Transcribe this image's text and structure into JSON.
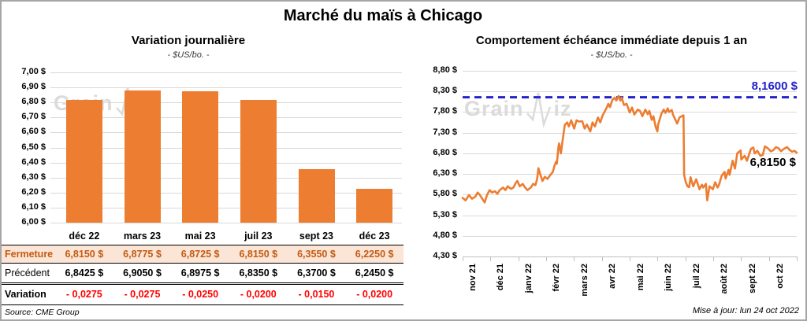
{
  "header": {
    "title": "Marché du maïs à Chicago"
  },
  "footer": {
    "source": "Source: CME Group",
    "updated": "Mise à jour: lun 24 oct 2022"
  },
  "watermark": {
    "part1": "Grain",
    "part2": "iz"
  },
  "colors": {
    "accent_orange": "#ED7D31",
    "ref_blue": "#2222CC",
    "negative_red": "#FF0000",
    "fermeture_text": "#C55A11",
    "fermeture_bg": "#FBE5D6",
    "gridline": "#D9D9D9",
    "watermark_gray": "#C9C9C9"
  },
  "chart_data": [
    {
      "type": "bar",
      "title": "Variation journalière",
      "subtitle": "- $US/bo. -",
      "categories": [
        "déc 22",
        "mars 23",
        "mai 23",
        "juil 23",
        "sept 23",
        "déc 23"
      ],
      "values": [
        6.815,
        6.8775,
        6.8725,
        6.815,
        6.355,
        6.225
      ],
      "ylim": [
        6.0,
        7.0
      ],
      "ytick_step": 0.1,
      "ytick_labels": [
        "7,00 $",
        "6,90 $",
        "6,80 $",
        "6,70 $",
        "6,60 $",
        "6,50 $",
        "6,40 $",
        "6,30 $",
        "6,20 $",
        "6,10 $",
        "6,00 $"
      ],
      "grid": true,
      "legend": "none",
      "bar_color": "#ED7D31"
    },
    {
      "type": "line",
      "title": "Comportement échéance immédiate depuis 1 an",
      "subtitle": "- $US/bo. -",
      "x_labels": [
        "nov 21",
        "déc 21",
        "janv 22",
        "févr 22",
        "mars 22",
        "avr 22",
        "mai 22",
        "juin 22",
        "juil 22",
        "août 22",
        "sept 22",
        "oct 22"
      ],
      "ylim": [
        4.3,
        8.8
      ],
      "ytick_step": 0.5,
      "ytick_labels": [
        "8,80 $",
        "8,30 $",
        "7,80 $",
        "7,30 $",
        "6,80 $",
        "6,30 $",
        "5,80 $",
        "5,30 $",
        "4,80 $",
        "4,30 $"
      ],
      "grid": true,
      "legend": "none",
      "line_color": "#ED7D31",
      "ref_line": {
        "value": 8.16,
        "label": "8,1600 $",
        "color": "#2222CC",
        "style": "dashed"
      },
      "last_value": 6.815,
      "last_value_label": "6,8150 $",
      "points": [
        [
          0.0,
          5.72
        ],
        [
          0.009,
          5.66
        ],
        [
          0.019,
          5.79
        ],
        [
          0.028,
          5.7
        ],
        [
          0.038,
          5.75
        ],
        [
          0.045,
          5.85
        ],
        [
          0.052,
          5.79
        ],
        [
          0.062,
          5.66
        ],
        [
          0.066,
          5.61
        ],
        [
          0.073,
          5.79
        ],
        [
          0.081,
          5.91
        ],
        [
          0.088,
          5.85
        ],
        [
          0.097,
          5.88
        ],
        [
          0.104,
          5.82
        ],
        [
          0.111,
          5.91
        ],
        [
          0.121,
          5.97
        ],
        [
          0.128,
          5.91
        ],
        [
          0.135,
          6.0
        ],
        [
          0.145,
          5.94
        ],
        [
          0.152,
          5.97
        ],
        [
          0.159,
          6.08
        ],
        [
          0.164,
          6.13
        ],
        [
          0.171,
          6.0
        ],
        [
          0.18,
          6.06
        ],
        [
          0.187,
          5.97
        ],
        [
          0.194,
          5.91
        ],
        [
          0.204,
          5.97
        ],
        [
          0.211,
          6.06
        ],
        [
          0.218,
          6.03
        ],
        [
          0.223,
          6.18
        ],
        [
          0.227,
          6.44
        ],
        [
          0.232,
          6.3
        ],
        [
          0.239,
          6.13
        ],
        [
          0.246,
          6.23
        ],
        [
          0.254,
          6.18
        ],
        [
          0.261,
          6.26
        ],
        [
          0.27,
          6.35
        ],
        [
          0.275,
          6.5
        ],
        [
          0.28,
          6.6
        ],
        [
          0.282,
          6.55
        ],
        [
          0.287,
          6.97
        ],
        [
          0.289,
          7.04
        ],
        [
          0.294,
          6.8
        ],
        [
          0.299,
          7.1
        ],
        [
          0.306,
          7.49
        ],
        [
          0.313,
          7.55
        ],
        [
          0.318,
          7.45
        ],
        [
          0.325,
          7.6
        ],
        [
          0.334,
          7.4
        ],
        [
          0.341,
          7.6
        ],
        [
          0.348,
          7.57
        ],
        [
          0.358,
          7.58
        ],
        [
          0.365,
          7.4
        ],
        [
          0.372,
          7.5
        ],
        [
          0.382,
          7.33
        ],
        [
          0.389,
          7.55
        ],
        [
          0.396,
          7.45
        ],
        [
          0.405,
          7.67
        ],
        [
          0.412,
          7.55
        ],
        [
          0.419,
          7.72
        ],
        [
          0.429,
          7.87
        ],
        [
          0.436,
          8.0
        ],
        [
          0.441,
          7.92
        ],
        [
          0.448,
          8.09
        ],
        [
          0.455,
          8.15
        ],
        [
          0.46,
          8.08
        ],
        [
          0.467,
          8.19
        ],
        [
          0.472,
          8.08
        ],
        [
          0.476,
          8.15
        ],
        [
          0.483,
          7.97
        ],
        [
          0.491,
          8.0
        ],
        [
          0.5,
          7.79
        ],
        [
          0.507,
          7.91
        ],
        [
          0.514,
          7.74
        ],
        [
          0.524,
          7.86
        ],
        [
          0.531,
          7.83
        ],
        [
          0.538,
          7.7
        ],
        [
          0.547,
          7.86
        ],
        [
          0.554,
          7.75
        ],
        [
          0.559,
          7.83
        ],
        [
          0.566,
          7.61
        ],
        [
          0.571,
          7.7
        ],
        [
          0.578,
          7.43
        ],
        [
          0.583,
          7.33
        ],
        [
          0.585,
          7.49
        ],
        [
          0.595,
          7.76
        ],
        [
          0.602,
          7.86
        ],
        [
          0.607,
          7.78
        ],
        [
          0.614,
          7.89
        ],
        [
          0.618,
          7.8
        ],
        [
          0.626,
          7.85
        ],
        [
          0.63,
          7.73
        ],
        [
          0.637,
          7.61
        ],
        [
          0.642,
          7.52
        ],
        [
          0.649,
          7.67
        ],
        [
          0.656,
          7.7
        ],
        [
          0.661,
          7.72
        ],
        [
          0.663,
          6.28
        ],
        [
          0.668,
          6.1
        ],
        [
          0.673,
          6.0
        ],
        [
          0.678,
          5.98
        ],
        [
          0.682,
          6.22
        ],
        [
          0.69,
          6.0
        ],
        [
          0.699,
          6.17
        ],
        [
          0.709,
          5.93
        ],
        [
          0.716,
          6.04
        ],
        [
          0.72,
          5.97
        ],
        [
          0.728,
          6.06
        ],
        [
          0.732,
          5.66
        ],
        [
          0.739,
          6.0
        ],
        [
          0.749,
          5.93
        ],
        [
          0.756,
          6.1
        ],
        [
          0.763,
          5.97
        ],
        [
          0.768,
          6.05
        ],
        [
          0.775,
          6.25
        ],
        [
          0.784,
          6.35
        ],
        [
          0.787,
          6.19
        ],
        [
          0.796,
          6.4
        ],
        [
          0.799,
          6.28
        ],
        [
          0.808,
          6.62
        ],
        [
          0.815,
          6.43
        ],
        [
          0.822,
          6.8
        ],
        [
          0.832,
          6.87
        ],
        [
          0.834,
          6.65
        ],
        [
          0.844,
          6.74
        ],
        [
          0.851,
          6.62
        ],
        [
          0.863,
          6.91
        ],
        [
          0.87,
          6.94
        ],
        [
          0.874,
          6.8
        ],
        [
          0.882,
          6.86
        ],
        [
          0.891,
          6.74
        ],
        [
          0.898,
          6.76
        ],
        [
          0.905,
          6.97
        ],
        [
          0.915,
          6.91
        ],
        [
          0.922,
          6.85
        ],
        [
          0.929,
          6.87
        ],
        [
          0.938,
          6.95
        ],
        [
          0.946,
          6.92
        ],
        [
          0.953,
          6.85
        ],
        [
          0.957,
          6.88
        ],
        [
          0.964,
          6.92
        ],
        [
          0.971,
          6.95
        ],
        [
          0.979,
          6.88
        ],
        [
          0.986,
          6.84
        ],
        [
          0.993,
          6.86
        ],
        [
          1.0,
          6.815
        ]
      ]
    }
  ],
  "table": {
    "col_headers": [
      "déc 22",
      "mars 23",
      "mai 23",
      "juil 23",
      "sept 23",
      "déc 23"
    ],
    "rows": [
      {
        "label": "Fermeture",
        "values": [
          "6,8150 $",
          "6,8775 $",
          "6,8725 $",
          "6,8150 $",
          "6,3550 $",
          "6,2250 $"
        ]
      },
      {
        "label": "Précédent",
        "values": [
          "6,8425 $",
          "6,9050 $",
          "6,8975 $",
          "6,8350 $",
          "6,3700 $",
          "6,2450 $"
        ]
      },
      {
        "label": "Variation",
        "values": [
          "- 0,0275",
          "- 0,0275",
          "- 0,0250",
          "- 0,0200",
          "- 0,0150",
          "- 0,0200"
        ]
      }
    ]
  }
}
